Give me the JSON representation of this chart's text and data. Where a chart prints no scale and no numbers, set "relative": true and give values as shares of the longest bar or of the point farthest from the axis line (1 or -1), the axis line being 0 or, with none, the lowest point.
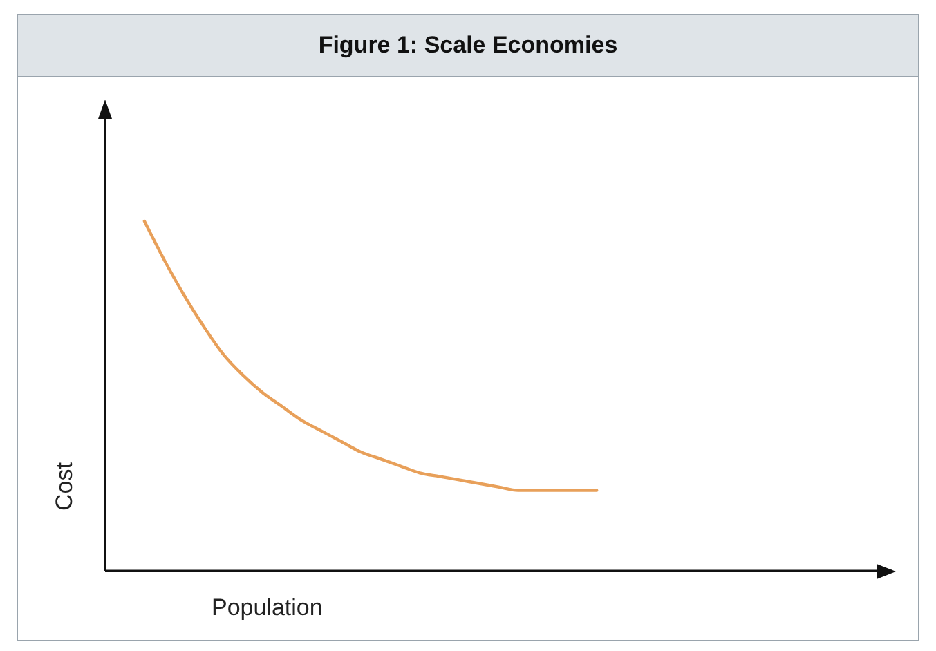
{
  "chart_data": {
    "type": "line",
    "title": "Figure 1: Scale Economies",
    "xlabel": "Population",
    "ylabel": "Cost",
    "relative": true,
    "grid": false,
    "legend": false,
    "marker": "none",
    "line_style": "solid",
    "categories": [
      null,
      null,
      null,
      null,
      null,
      null,
      null,
      null,
      null,
      null,
      null,
      null,
      null,
      null,
      null,
      null,
      null,
      null,
      null,
      null,
      null,
      null,
      null,
      null,
      null,
      null,
      null,
      null,
      null,
      null,
      null,
      null,
      null,
      null,
      null,
      null,
      null,
      null,
      null,
      null,
      null
    ],
    "series": [
      {
        "color": "#e8a05a",
        "values": [
          null,
          null,
          1,
          0.89,
          0.79,
          0.7,
          0.62,
          0.56,
          0.51,
          0.47,
          0.43,
          0.4,
          0.37,
          0.34,
          0.32,
          0.3,
          0.28,
          0.27,
          0.26,
          0.25,
          0.24,
          0.23,
          0.23,
          0.23,
          0.23,
          0.23,
          null,
          null,
          null,
          null,
          null,
          null,
          null,
          null,
          null,
          null,
          null,
          null,
          null,
          null,
          null
        ]
      }
    ]
  }
}
